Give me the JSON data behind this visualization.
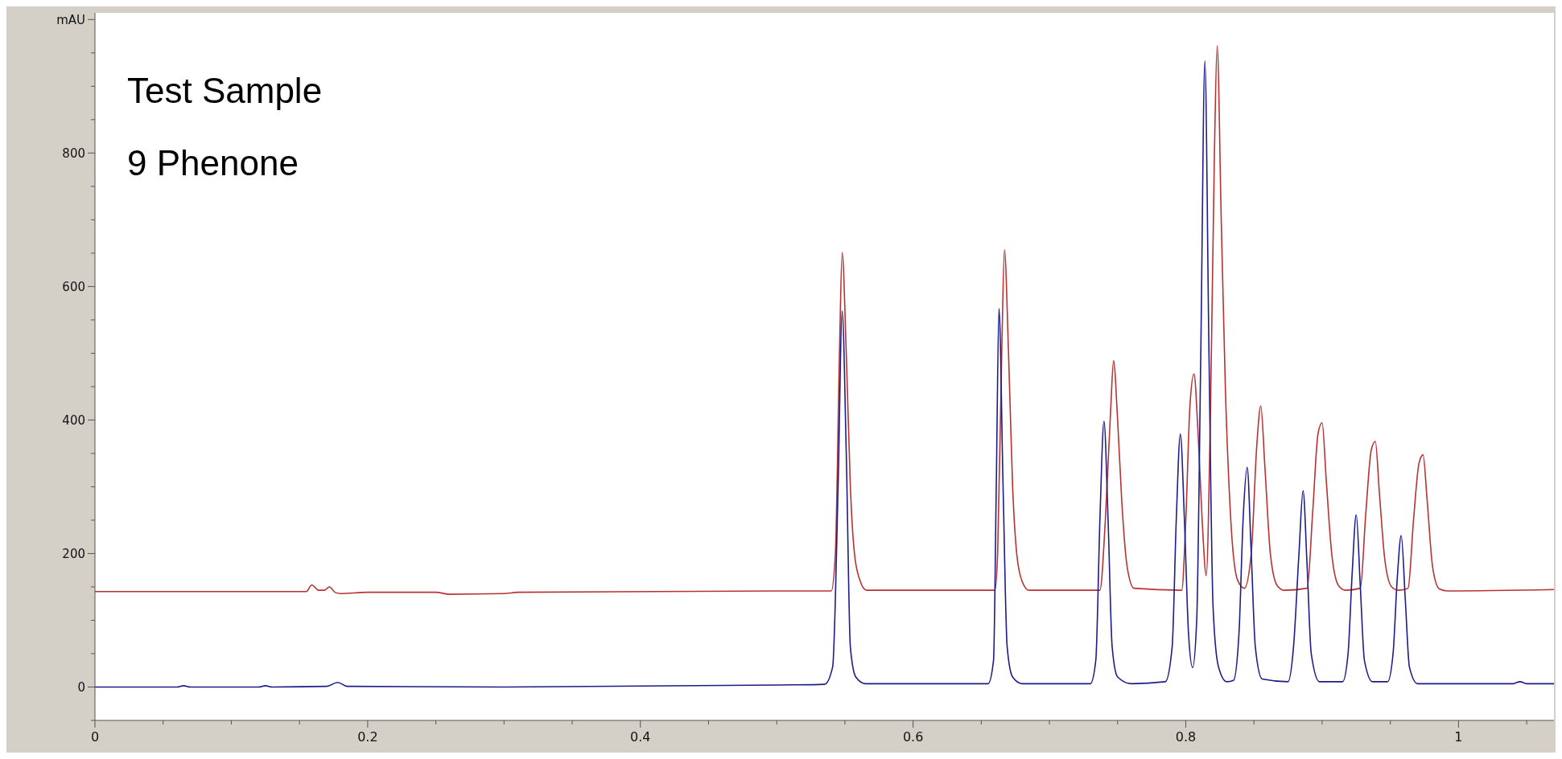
{
  "chart_data": {
    "type": "line",
    "title": "Test Sample",
    "subtitle": "9 Phenone",
    "xlim": [
      0,
      1.07
    ],
    "ylim": [
      -50,
      1010
    ],
    "xticks": [
      0,
      {
        "value": 0.05,
        "label": null
      },
      {
        "value": 0.1,
        "label": null
      },
      {
        "value": 0.15,
        "label": null
      },
      0.2,
      {
        "value": 0.25,
        "label": null
      },
      {
        "value": 0.3,
        "label": null
      },
      {
        "value": 0.35,
        "label": null
      },
      0.4,
      {
        "value": 0.45,
        "label": null
      },
      {
        "value": 0.5,
        "label": null
      },
      {
        "value": 0.55,
        "label": null
      },
      0.6,
      {
        "value": 0.65,
        "label": null
      },
      {
        "value": 0.7,
        "label": null
      },
      {
        "value": 0.75,
        "label": null
      },
      0.8,
      {
        "value": 0.85,
        "label": null
      },
      {
        "value": 0.9,
        "label": null
      },
      {
        "value": 0.95,
        "label": null
      },
      1,
      {
        "value": 1.05,
        "label": null
      }
    ],
    "yticks": [
      {
        "value": -50,
        "label": null
      },
      0,
      {
        "value": 50,
        "label": null
      },
      {
        "value": 100,
        "label": null
      },
      {
        "value": 150,
        "label": null
      },
      200,
      {
        "value": 250,
        "label": null
      },
      {
        "value": 300,
        "label": null
      },
      {
        "value": 350,
        "label": null
      },
      400,
      {
        "value": 450,
        "label": null
      },
      {
        "value": 500,
        "label": null
      },
      {
        "value": 550,
        "label": null
      },
      600,
      {
        "value": 650,
        "label": null
      },
      {
        "value": 700,
        "label": null
      },
      {
        "value": 750,
        "label": null
      },
      800,
      {
        "value": 850,
        "label": null
      },
      {
        "value": 900,
        "label": null
      },
      {
        "value": 950,
        "label": null
      },
      {
        "value": 1000,
        "label": "mAU"
      }
    ],
    "grid": false,
    "marker": "none",
    "line_style": "solid",
    "series": [
      {
        "color": "#b83232",
        "x": [
          0,
          0.155,
          0.159,
          0.164,
          0.168,
          0.172,
          0.176,
          0.18,
          0.2,
          0.25,
          0.26,
          0.3,
          0.31,
          0.5,
          0.54,
          0.543,
          0.546,
          0.548,
          0.551,
          0.554,
          0.557,
          0.561,
          0.566,
          0.66,
          0.662,
          0.665,
          0.667,
          0.67,
          0.673,
          0.676,
          0.68,
          0.685,
          0.737,
          0.741,
          0.745,
          0.747,
          0.75,
          0.753,
          0.757,
          0.762,
          0.797,
          0.8,
          0.803,
          0.806,
          0.809,
          0.812,
          0.815,
          0.818,
          0.821,
          0.823,
          0.826,
          0.829,
          0.833,
          0.838,
          0.843,
          0.848,
          0.852,
          0.855,
          0.858,
          0.862,
          0.867,
          0.872,
          0.889,
          0.893,
          0.897,
          0.9,
          0.903,
          0.907,
          0.912,
          0.917,
          0.928,
          0.932,
          0.936,
          0.939,
          0.942,
          0.946,
          0.951,
          0.956,
          0.963,
          0.967,
          0.971,
          0.974,
          0.977,
          0.981,
          0.986,
          0.992,
          1.07
        ],
        "values": [
          143,
          143,
          153,
          145,
          145,
          150,
          142,
          140,
          142,
          142,
          139,
          140,
          142,
          144,
          144,
          200,
          500,
          651,
          500,
          300,
          200,
          160,
          145,
          145,
          200,
          500,
          655,
          500,
          300,
          200,
          158,
          145,
          145,
          250,
          420,
          489,
          400,
          280,
          180,
          148,
          145,
          250,
          420,
          469,
          380,
          250,
          167,
          400,
          800,
          961,
          700,
          450,
          250,
          160,
          148,
          200,
          360,
          421,
          330,
          200,
          152,
          145,
          148,
          260,
          380,
          396,
          310,
          200,
          152,
          145,
          148,
          260,
          355,
          368,
          290,
          190,
          150,
          145,
          148,
          250,
          335,
          348,
          280,
          180,
          147,
          144,
          146
        ]
      },
      {
        "color": "#1c1c8a",
        "x": [
          0,
          0.06,
          0.065,
          0.07,
          0.12,
          0.125,
          0.13,
          0.17,
          0.178,
          0.185,
          0.3,
          0.5,
          0.535,
          0.541,
          0.545,
          0.548,
          0.551,
          0.554,
          0.558,
          0.565,
          0.655,
          0.659,
          0.661,
          0.663,
          0.666,
          0.669,
          0.673,
          0.68,
          0.73,
          0.734,
          0.737,
          0.74,
          0.743,
          0.746,
          0.75,
          0.76,
          0.785,
          0.79,
          0.793,
          0.796,
          0.799,
          0.802,
          0.805,
          0.808,
          0.811,
          0.814,
          0.817,
          0.82,
          0.824,
          0.83,
          0.835,
          0.839,
          0.842,
          0.845,
          0.848,
          0.851,
          0.856,
          0.875,
          0.879,
          0.883,
          0.886,
          0.889,
          0.892,
          0.898,
          0.915,
          0.919,
          0.922,
          0.925,
          0.928,
          0.931,
          0.937,
          0.948,
          0.952,
          0.955,
          0.958,
          0.961,
          0.964,
          0.97,
          1.04,
          1.045,
          1.05,
          1.07
        ],
        "values": [
          0,
          0,
          2,
          0,
          0,
          2,
          0,
          1,
          7,
          1,
          0,
          3,
          4,
          30,
          300,
          563,
          350,
          60,
          15,
          5,
          5,
          40,
          300,
          567,
          300,
          60,
          15,
          5,
          5,
          40,
          250,
          398,
          250,
          60,
          15,
          5,
          8,
          60,
          250,
          379,
          250,
          80,
          29,
          100,
          500,
          938,
          500,
          120,
          30,
          8,
          10,
          80,
          250,
          329,
          200,
          60,
          12,
          8,
          60,
          200,
          294,
          180,
          50,
          8,
          8,
          50,
          170,
          258,
          150,
          40,
          8,
          8,
          50,
          160,
          227,
          130,
          30,
          5,
          5,
          8,
          5,
          5
        ]
      }
    ]
  }
}
